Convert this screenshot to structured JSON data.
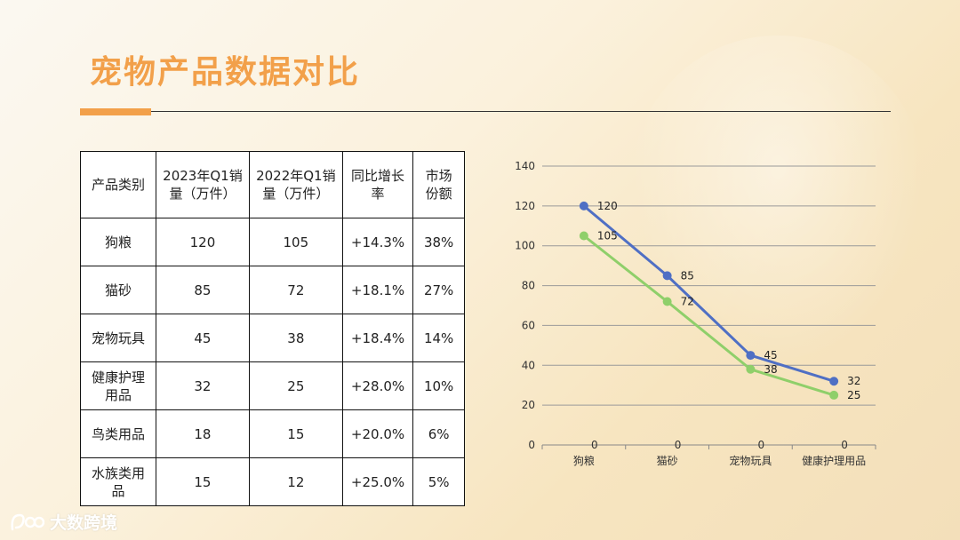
{
  "page": {
    "title": "宠物产品数据对比",
    "accent_color": "#f2a04a"
  },
  "table": {
    "headers": [
      "产品类别",
      "2023年Q1销量（万件）",
      "2022年Q1销量（万件）",
      "同比增长率",
      "市场份额"
    ],
    "rows": [
      [
        "狗粮",
        "120",
        "105",
        "+14.3%",
        "38%"
      ],
      [
        "猫砂",
        "85",
        "72",
        "+18.1%",
        "27%"
      ],
      [
        "宠物玩具",
        "45",
        "38",
        "+18.4%",
        "14%"
      ],
      [
        "健康护理用品",
        "32",
        "25",
        "+28.0%",
        "10%"
      ],
      [
        "鸟类用品",
        "18",
        "15",
        "+20.0%",
        "6%"
      ],
      [
        "水族类用品",
        "15",
        "12",
        "+25.0%",
        "5%"
      ]
    ]
  },
  "chart_data": {
    "type": "line",
    "categories": [
      "狗粮",
      "猫砂",
      "宠物玩具",
      "健康护理用品"
    ],
    "series": [
      {
        "values": [
          120,
          85,
          45,
          32
        ],
        "color": "#4f6fc4"
      },
      {
        "values": [
          105,
          72,
          38,
          25
        ],
        "color": "#8fcf6a"
      }
    ],
    "baseline_labels": [
      "0",
      "0",
      "0",
      "0"
    ],
    "ylim": [
      0,
      140
    ],
    "yticks": [
      0,
      20,
      40,
      60,
      80,
      100,
      120,
      140
    ],
    "grid": true,
    "legend": "none"
  },
  "logo": {
    "text": "大数跨境",
    "icon": "logo-icon"
  }
}
